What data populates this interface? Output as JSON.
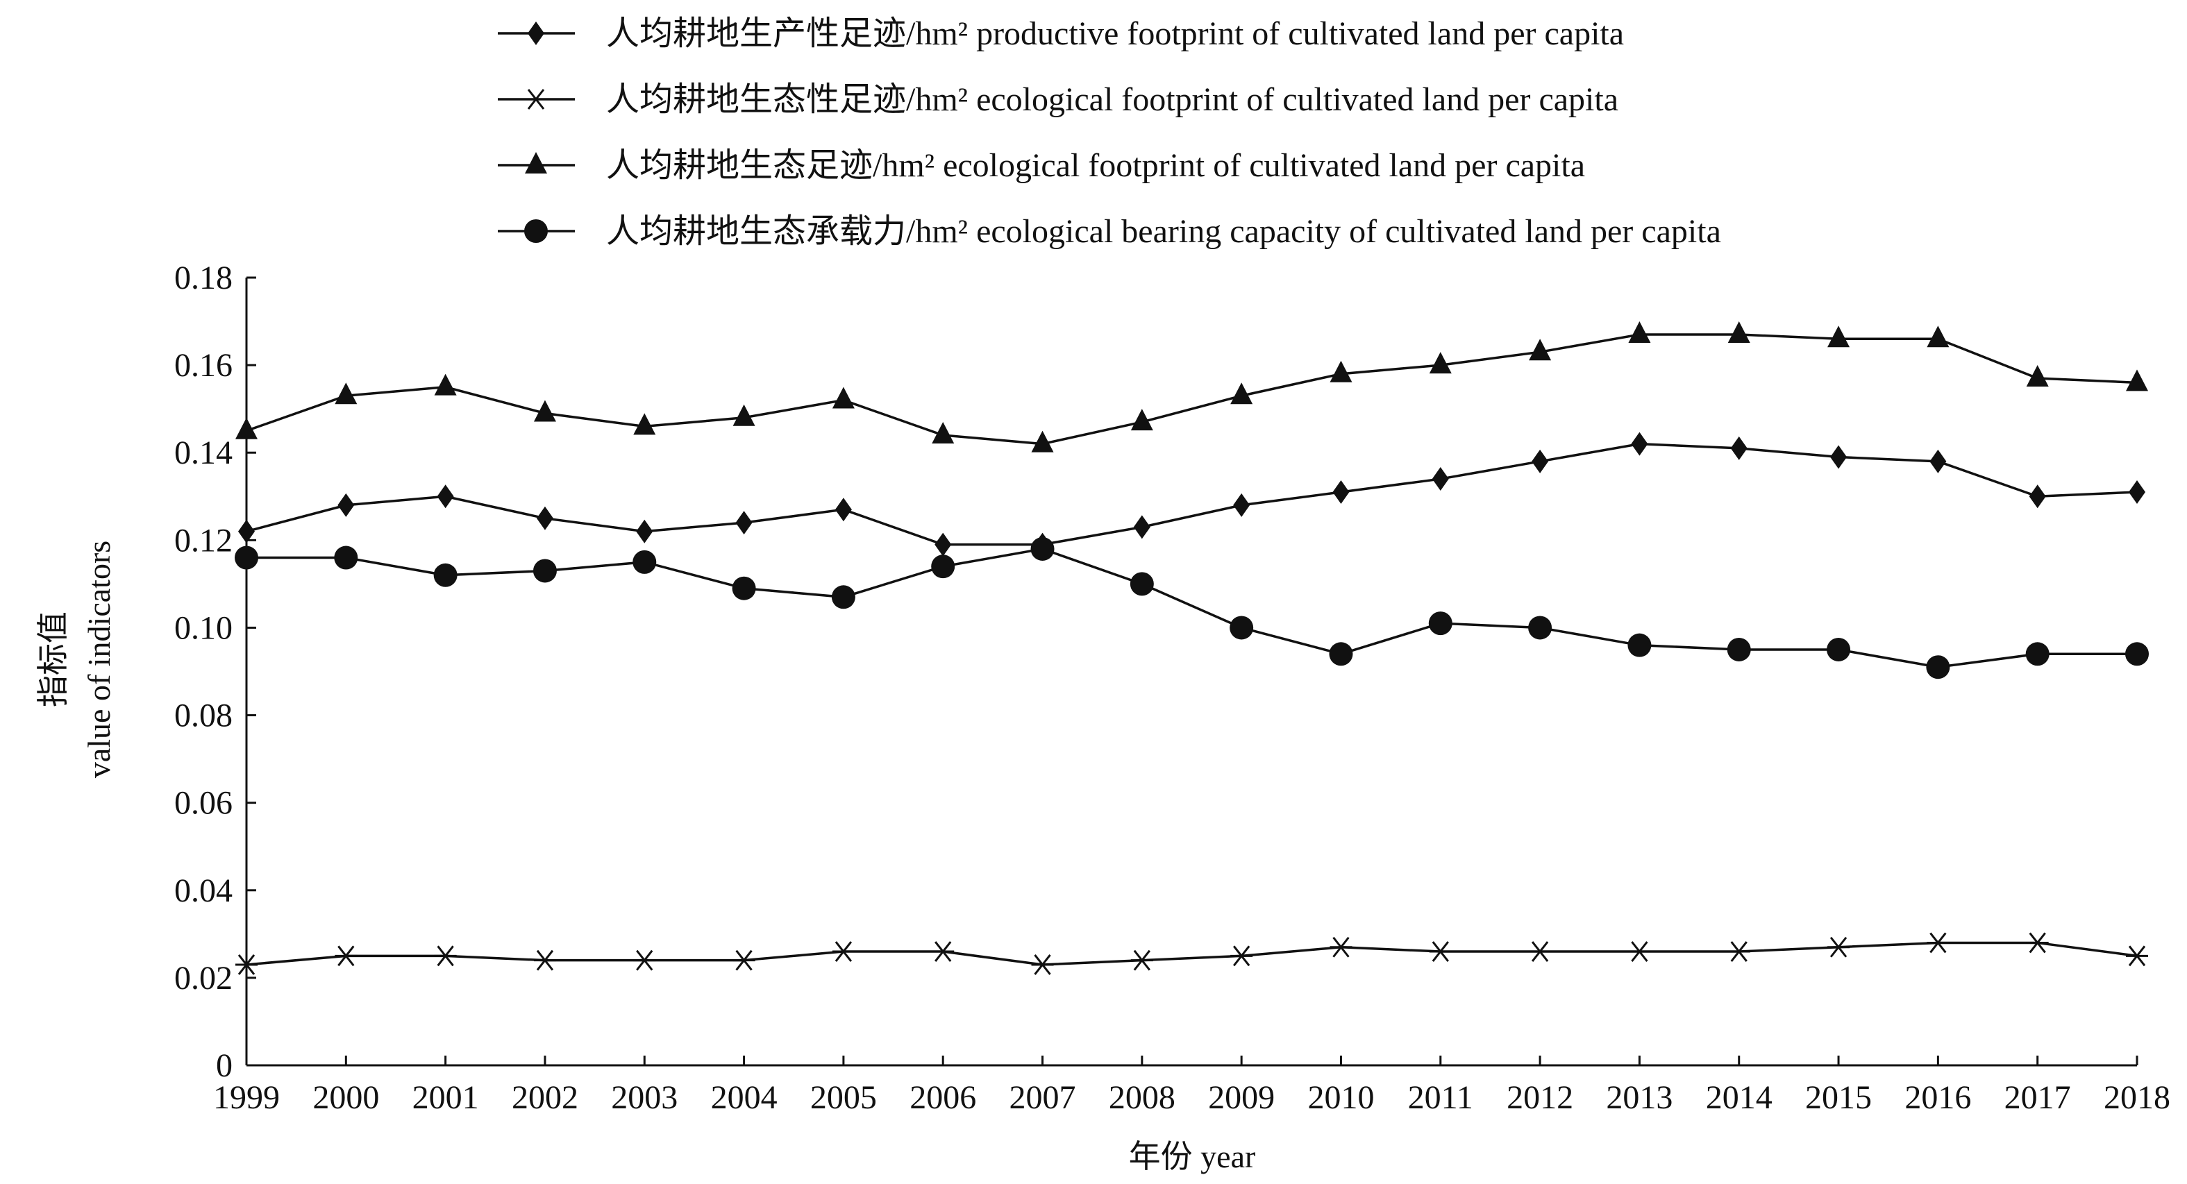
{
  "chart_data": {
    "type": "line",
    "title": "",
    "xlabel": "年份 year",
    "ylabel_cn": "指标值",
    "ylabel_en": "value of indicators",
    "ylim": [
      0,
      0.18
    ],
    "yticks": [
      "0",
      "0.02",
      "0.04",
      "0.06",
      "0.08",
      "0.10",
      "0.12",
      "0.14",
      "0.16",
      "0.18"
    ],
    "x": [
      "1999",
      "2000",
      "2001",
      "2002",
      "2003",
      "2004",
      "2005",
      "2006",
      "2007",
      "2008",
      "2009",
      "2010",
      "2011",
      "2012",
      "2013",
      "2014",
      "2015",
      "2016",
      "2017",
      "2018"
    ],
    "grid": false,
    "legend_position": "top",
    "series": [
      {
        "name": "人均耕地生产性足迹/hm² productive footprint of cultivated land per capita",
        "marker": "diamond",
        "values": [
          0.122,
          0.128,
          0.13,
          0.125,
          0.122,
          0.124,
          0.127,
          0.119,
          0.119,
          0.123,
          0.128,
          0.131,
          0.134,
          0.138,
          0.142,
          0.141,
          0.139,
          0.138,
          0.13,
          0.131
        ]
      },
      {
        "name": "人均耕地生态性足迹/hm² ecological footprint of cultivated land per capita",
        "marker": "star",
        "values": [
          0.023,
          0.025,
          0.025,
          0.024,
          0.024,
          0.024,
          0.026,
          0.026,
          0.023,
          0.024,
          0.025,
          0.027,
          0.026,
          0.026,
          0.026,
          0.026,
          0.027,
          0.028,
          0.028,
          0.025
        ]
      },
      {
        "name": "人均耕地生态足迹/hm² ecological footprint of cultivated land per capita",
        "marker": "triangle",
        "values": [
          0.145,
          0.153,
          0.155,
          0.149,
          0.146,
          0.148,
          0.152,
          0.144,
          0.142,
          0.147,
          0.153,
          0.158,
          0.16,
          0.163,
          0.167,
          0.167,
          0.166,
          0.166,
          0.157,
          0.156
        ]
      },
      {
        "name": "人均耕地生态承载力/hm² ecological bearing capacity of cultivated land per capita",
        "marker": "circle",
        "values": [
          0.116,
          0.116,
          0.112,
          0.113,
          0.115,
          0.109,
          0.107,
          0.114,
          0.118,
          0.11,
          0.1,
          0.094,
          0.101,
          0.1,
          0.096,
          0.095,
          0.095,
          0.091,
          0.094,
          0.094
        ]
      }
    ],
    "colors": {
      "line": "#111111",
      "marker": "#111111"
    }
  }
}
